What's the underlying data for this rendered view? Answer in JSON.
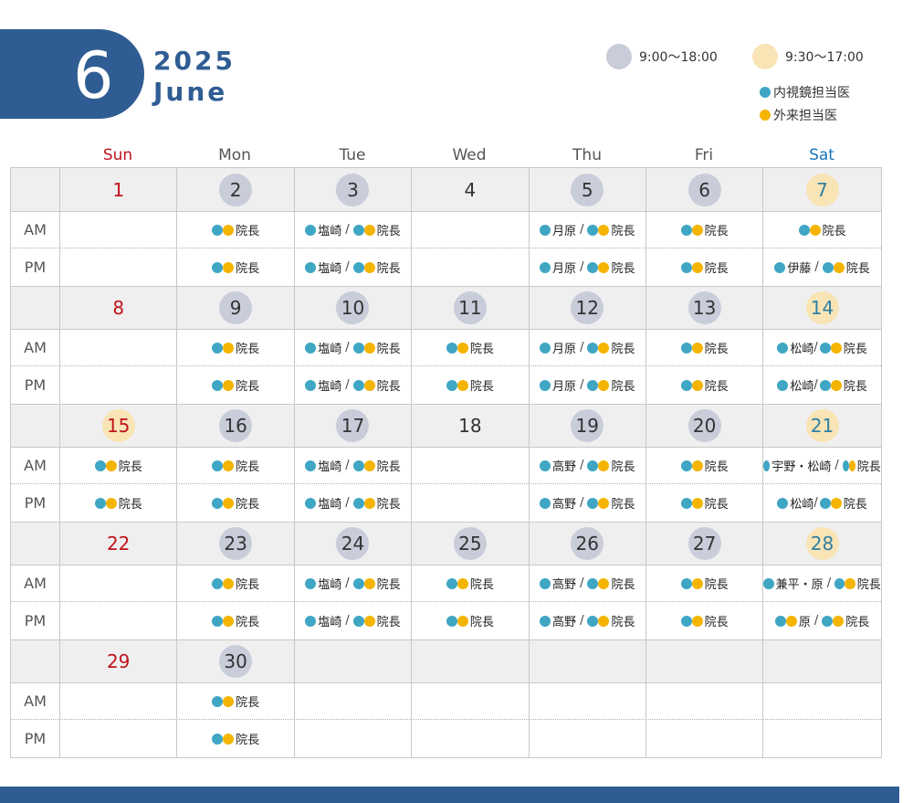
{
  "header": {
    "month_number": "6",
    "year": "2025",
    "month_name": "June"
  },
  "legend": {
    "hours1": "9:00～18:00",
    "hours2": "9:30～17:00",
    "endoscopy": "内視鏡担当医",
    "outpatient": "外来担当医",
    "colors": {
      "hours1": "#c9ccd9",
      "hours2": "#f8e4b5",
      "endoscopy_dot": "#3fa6c4",
      "outpatient_dot": "#f4b400"
    }
  },
  "weekdays": [
    "Sun",
    "Mon",
    "Tue",
    "Wed",
    "Thu",
    "Fri",
    "Sat"
  ],
  "am_label": "AM",
  "pm_label": "PM",
  "weeks": [
    {
      "days": [
        {
          "num": "1",
          "style": "sunred",
          "am": null,
          "pm": null
        },
        {
          "num": "2",
          "style": "hol",
          "am": {
            "dots": "by",
            "text": "院長"
          },
          "pm": {
            "dots": "by",
            "text": "院長"
          }
        },
        {
          "num": "3",
          "style": "hol",
          "am": {
            "pre": "塩崎",
            "dots": "by",
            "text": "院長"
          },
          "pm": {
            "pre": "塩崎",
            "dots": "by",
            "text": "院長"
          }
        },
        {
          "num": "4",
          "style": "",
          "am": null,
          "pm": null
        },
        {
          "num": "5",
          "style": "hol",
          "am": {
            "pre": "月原",
            "dots": "by",
            "text": "院長"
          },
          "pm": {
            "pre": "月原",
            "dots": "by",
            "text": "院長"
          }
        },
        {
          "num": "6",
          "style": "hol",
          "am": {
            "dots": "by",
            "text": "院長"
          },
          "pm": {
            "dots": "by",
            "text": "院長"
          }
        },
        {
          "num": "7",
          "style": "sat",
          "am": {
            "dots": "by",
            "text": "院長"
          },
          "pm": {
            "pre": "伊藤",
            "dots": "by",
            "text": "院長"
          }
        }
      ]
    },
    {
      "days": [
        {
          "num": "8",
          "style": "sunred",
          "am": null,
          "pm": null
        },
        {
          "num": "9",
          "style": "hol",
          "am": {
            "dots": "by",
            "text": "院長"
          },
          "pm": {
            "dots": "by",
            "text": "院長"
          }
        },
        {
          "num": "10",
          "style": "hol",
          "am": {
            "pre": "塩崎",
            "dots": "by",
            "text": "院長"
          },
          "pm": {
            "pre": "塩崎",
            "dots": "by",
            "text": "院長"
          }
        },
        {
          "num": "11",
          "style": "hol",
          "am": {
            "dots": "by",
            "text": "院長"
          },
          "pm": {
            "dots": "by",
            "text": "院長"
          }
        },
        {
          "num": "12",
          "style": "hol",
          "am": {
            "pre": "月原",
            "dots": "by",
            "text": "院長"
          },
          "pm": {
            "pre": "月原",
            "dots": "by",
            "text": "院長"
          }
        },
        {
          "num": "13",
          "style": "hol",
          "am": {
            "dots": "by",
            "text": "院長"
          },
          "pm": {
            "dots": "by",
            "text": "院長"
          }
        },
        {
          "num": "14",
          "style": "sat",
          "am": {
            "pre": "松崎",
            "dots": "by",
            "text": "院長",
            "tight": true
          },
          "pm": {
            "pre": "松崎",
            "dots": "by",
            "text": "院長",
            "tight": true
          }
        }
      ]
    },
    {
      "days": [
        {
          "num": "15",
          "style": "sunhi",
          "am": {
            "dots": "by",
            "text": "院長"
          },
          "pm": {
            "dots": "by",
            "text": "院長"
          }
        },
        {
          "num": "16",
          "style": "hol",
          "am": {
            "dots": "by",
            "text": "院長"
          },
          "pm": {
            "dots": "by",
            "text": "院長"
          }
        },
        {
          "num": "17",
          "style": "hol",
          "am": {
            "pre": "塩崎",
            "dots": "by",
            "text": "院長"
          },
          "pm": {
            "pre": "塩崎",
            "dots": "by",
            "text": "院長"
          }
        },
        {
          "num": "18",
          "style": "",
          "am": null,
          "pm": null
        },
        {
          "num": "19",
          "style": "hol",
          "am": {
            "pre": "高野",
            "dots": "by",
            "text": "院長"
          },
          "pm": {
            "pre": "高野",
            "dots": "by",
            "text": "院長"
          }
        },
        {
          "num": "20",
          "style": "hol",
          "am": {
            "dots": "by",
            "text": "院長"
          },
          "pm": {
            "dots": "by",
            "text": "院長"
          }
        },
        {
          "num": "21",
          "style": "sat",
          "am": {
            "pre": "宇野・松崎",
            "dots": "by",
            "text": "院長"
          },
          "pm": {
            "pre": "松崎",
            "dots": "by",
            "text": "院長",
            "tight": true
          }
        }
      ]
    },
    {
      "days": [
        {
          "num": "22",
          "style": "sunred",
          "am": null,
          "pm": null
        },
        {
          "num": "23",
          "style": "hol",
          "am": {
            "dots": "by",
            "text": "院長"
          },
          "pm": {
            "dots": "by",
            "text": "院長"
          }
        },
        {
          "num": "24",
          "style": "hol",
          "am": {
            "pre": "塩崎",
            "dots": "by",
            "text": "院長"
          },
          "pm": {
            "pre": "塩崎",
            "dots": "by",
            "text": "院長"
          }
        },
        {
          "num": "25",
          "style": "hol",
          "am": {
            "dots": "by",
            "text": "院長"
          },
          "pm": {
            "dots": "by",
            "text": "院長"
          }
        },
        {
          "num": "26",
          "style": "hol",
          "am": {
            "pre": "高野",
            "dots": "by",
            "text": "院長"
          },
          "pm": {
            "pre": "高野",
            "dots": "by",
            "text": "院長"
          }
        },
        {
          "num": "27",
          "style": "hol",
          "am": {
            "dots": "by",
            "text": "院長"
          },
          "pm": {
            "dots": "by",
            "text": "院長"
          }
        },
        {
          "num": "28",
          "style": "sat",
          "am": {
            "pre": "兼平・原",
            "dots": "by",
            "text": "院長"
          },
          "pm": {
            "predots": "by",
            "pre": "原",
            "dots": "by",
            "text": "院長"
          }
        }
      ]
    },
    {
      "days": [
        {
          "num": "29",
          "style": "sunred",
          "am": null,
          "pm": null
        },
        {
          "num": "30",
          "style": "hol",
          "am": {
            "dots": "by",
            "text": "院長"
          },
          "pm": {
            "dots": "by",
            "text": "院長"
          }
        },
        {
          "num": "",
          "style": "",
          "am": null,
          "pm": null
        },
        {
          "num": "",
          "style": "",
          "am": null,
          "pm": null
        },
        {
          "num": "",
          "style": "",
          "am": null,
          "pm": null
        },
        {
          "num": "",
          "style": "",
          "am": null,
          "pm": null
        },
        {
          "num": "",
          "style": "",
          "am": null,
          "pm": null
        }
      ]
    }
  ]
}
